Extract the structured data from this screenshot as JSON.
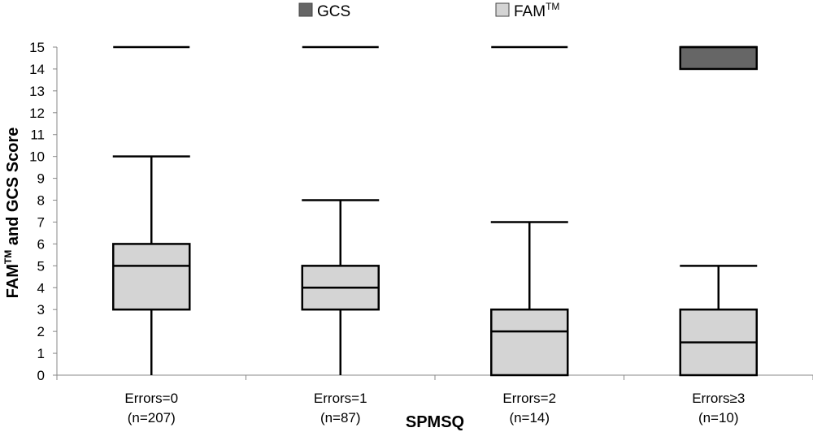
{
  "chart_data": {
    "type": "boxplot",
    "title": "",
    "xlabel": "SPMSQ",
    "ylabel": {
      "pre": "FAM",
      "sup": "TM",
      "post": " and GCS Score"
    },
    "ylim": [
      0,
      15
    ],
    "yticks": [
      0,
      1,
      2,
      3,
      4,
      5,
      6,
      7,
      8,
      9,
      10,
      11,
      12,
      13,
      14,
      15
    ],
    "grid": false,
    "legend_position": "top",
    "legend": [
      {
        "name": "GCS",
        "sup": "",
        "color": "#666666"
      },
      {
        "name": "FAM",
        "sup": "TM",
        "color": "#d4d4d4"
      }
    ],
    "categories": [
      {
        "line1": "Errors=0",
        "line2": "(n=207)"
      },
      {
        "line1": "Errors=1",
        "line2": "(n=87)"
      },
      {
        "line1": "Errors=2",
        "line2": "(n=14)"
      },
      {
        "line1": "Errors≥3",
        "line2": "(n=10)"
      }
    ],
    "series": [
      {
        "name": "FAM",
        "color": "#d4d4d4",
        "boxes": [
          {
            "min": 0,
            "q1": 3,
            "median": 5,
            "q3": 6,
            "max": 10
          },
          {
            "min": 0,
            "q1": 3,
            "median": 4,
            "q3": 5,
            "max": 8
          },
          {
            "min": 0,
            "q1": 0,
            "median": 2,
            "q3": 3,
            "max": 7
          },
          {
            "min": 0,
            "q1": 0,
            "median": 1.5,
            "q3": 3,
            "max": 5
          }
        ]
      },
      {
        "name": "GCS",
        "color": "#666666",
        "boxes": [
          {
            "min": 15,
            "q1": 15,
            "median": 15,
            "q3": 15,
            "max": 15
          },
          {
            "min": 15,
            "q1": 15,
            "median": 15,
            "q3": 15,
            "max": 15
          },
          {
            "min": 15,
            "q1": 15,
            "median": 15,
            "q3": 15,
            "max": 15
          },
          {
            "min": 14,
            "q1": 14,
            "median": 15,
            "q3": 15,
            "max": 15
          }
        ]
      }
    ]
  }
}
